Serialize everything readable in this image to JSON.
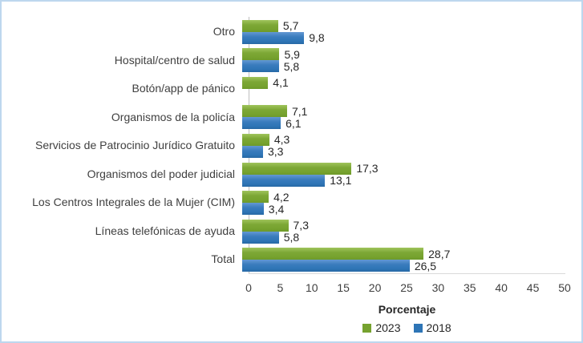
{
  "chart_data": {
    "type": "bar",
    "orientation": "horizontal",
    "title": "",
    "xlabel": "Porcentaje",
    "ylabel": "",
    "xlim": [
      0,
      50
    ],
    "xticks": [
      0,
      5,
      10,
      15,
      20,
      25,
      30,
      35,
      40,
      45,
      50
    ],
    "grid": false,
    "legend_position": "bottom",
    "decimal_separator": ",",
    "categories": [
      "Otro",
      "Hospital/centro de salud",
      "Botón/app de pánico",
      "Organismos de la policía",
      "Servicios de Patrocinio Jurídico Gratuito",
      "Organismos del poder judicial",
      "Los Centros Integrales de la Mujer (CIM)",
      "Líneas telefónicas de ayuda",
      "Total"
    ],
    "series": [
      {
        "name": "2023",
        "color": "#76A22F",
        "values": [
          5.7,
          5.9,
          4.1,
          7.1,
          4.3,
          17.3,
          4.2,
          7.3,
          28.7
        ],
        "labels": [
          "5,7",
          "5,9",
          "4,1",
          "7,1",
          "4,3",
          "17,3",
          "4,2",
          "7,3",
          "28,7"
        ]
      },
      {
        "name": "2018",
        "color": "#2E75B6",
        "values": [
          9.8,
          5.8,
          null,
          6.1,
          3.3,
          13.1,
          3.4,
          5.8,
          26.5
        ],
        "labels": [
          "9,8",
          "5,8",
          null,
          "6,1",
          "3,3",
          "13,1",
          "3,4",
          "5,8",
          "26,5"
        ]
      }
    ],
    "colors": {
      "frame_border": "#BDD7EE",
      "y_axis_line": "#BFBFBF",
      "x_axis_line": "#D9D9D9",
      "text": "#404040"
    }
  }
}
